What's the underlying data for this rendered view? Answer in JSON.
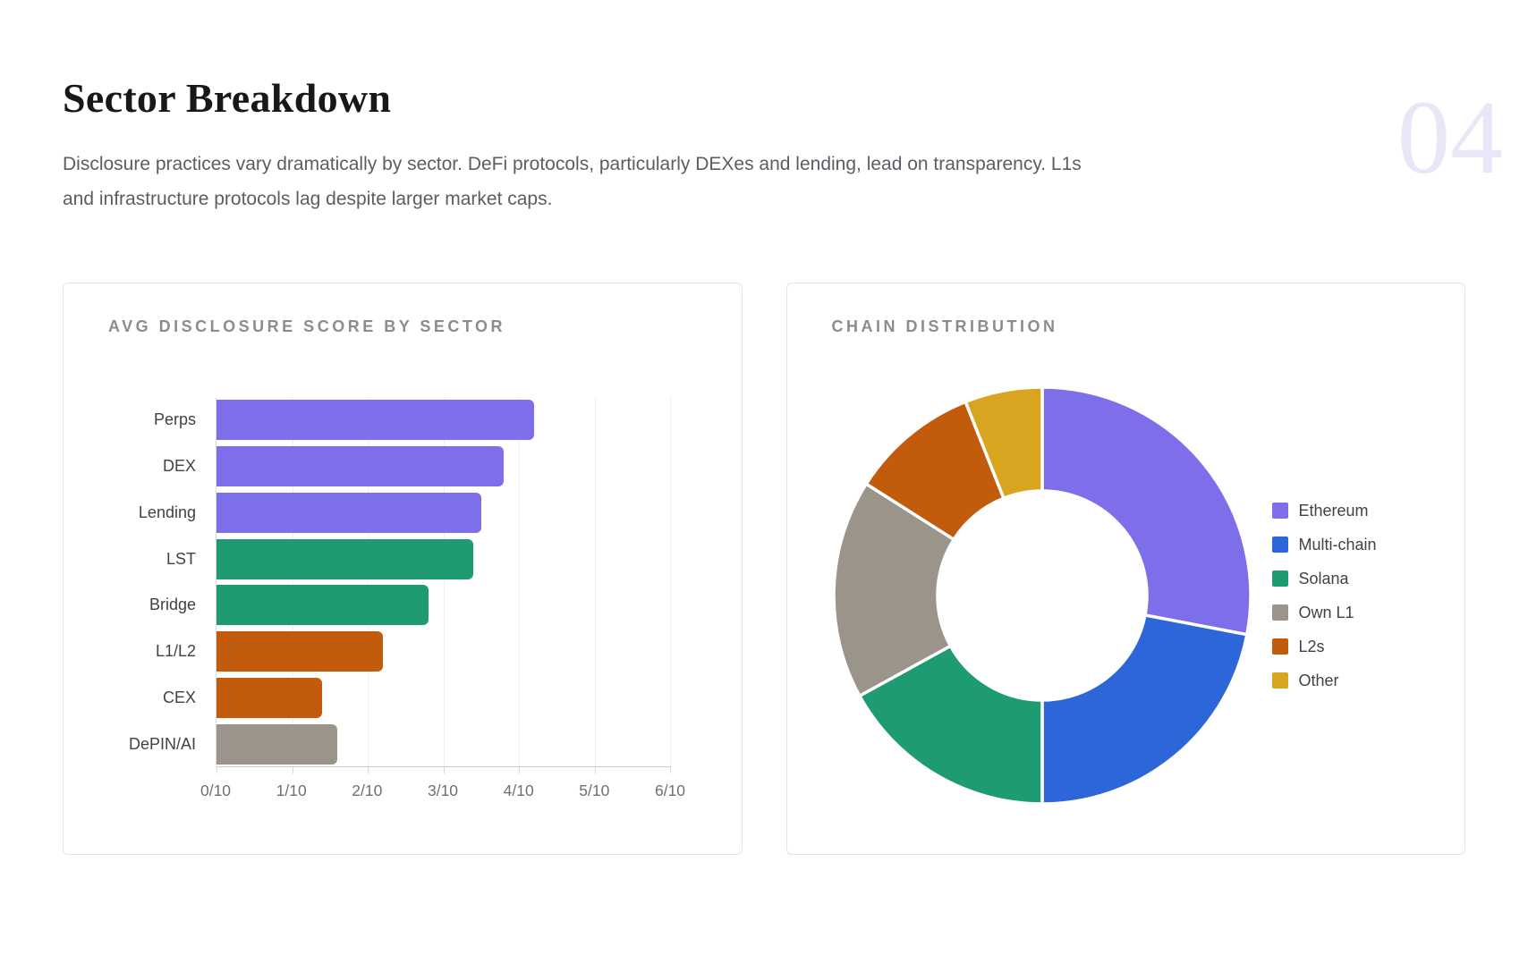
{
  "page": {
    "section_number": "04",
    "title": "Sector Breakdown",
    "subtitle_lines": [
      "Disclosure practices vary dramatically by sector. DeFi protocols, particularly DEXes and lending, lead on transparency. L1s",
      "and infrastructure protocols lag despite larger market caps."
    ]
  },
  "palette": {
    "purple": "#7C6FE9",
    "blue": "#2C66D9",
    "green": "#1E9B72",
    "gray": "#9B948A",
    "orange": "#C25B0B",
    "yellow": "#D9A521",
    "section_number": "#E9E7F7",
    "card_border": "#E4E4E4",
    "grid": "#F0F0F0",
    "axis": "#C9C9C9",
    "tick_text": "#707070",
    "label_text": "#3F4246",
    "card_title_text": "#8C8C8C"
  },
  "chart_data": [
    {
      "type": "bar",
      "orientation": "horizontal",
      "title": "AVG DISCLOSURE SCORE BY SECTOR",
      "categories": [
        "Perps",
        "DEX",
        "Lending",
        "LST",
        "Bridge",
        "L1/L2",
        "CEX",
        "DePIN/AI"
      ],
      "values": [
        4.2,
        3.8,
        3.5,
        3.4,
        2.8,
        2.2,
        1.4,
        1.6
      ],
      "bar_colors": [
        "#7C6FE9",
        "#7C6FE9",
        "#7C6FE9",
        "#1E9B72",
        "#1E9B72",
        "#C25B0B",
        "#C25B0B",
        "#9B948A"
      ],
      "xlabel": "",
      "ylabel": "",
      "xlim": [
        0,
        6
      ],
      "x_ticks": [
        "0/10",
        "1/10",
        "2/10",
        "3/10",
        "4/10",
        "5/10",
        "6/10"
      ],
      "x_tick_values": [
        0,
        1,
        2,
        3,
        4,
        5,
        6
      ],
      "grid": true,
      "legend_position": "none"
    },
    {
      "type": "pie",
      "donut": true,
      "inner_radius_ratio": 0.5,
      "title": "CHAIN DISTRIBUTION",
      "labels": [
        "Ethereum",
        "Multi-chain",
        "Solana",
        "Own L1",
        "L2s",
        "Other"
      ],
      "values": [
        28,
        22,
        17,
        17,
        10,
        6
      ],
      "colors": [
        "#7C6FE9",
        "#2C66D9",
        "#1E9B72",
        "#9B948A",
        "#C25B0B",
        "#D9A521"
      ],
      "start_angle_deg": 0,
      "direction": "clockwise",
      "legend_position": "right"
    }
  ]
}
